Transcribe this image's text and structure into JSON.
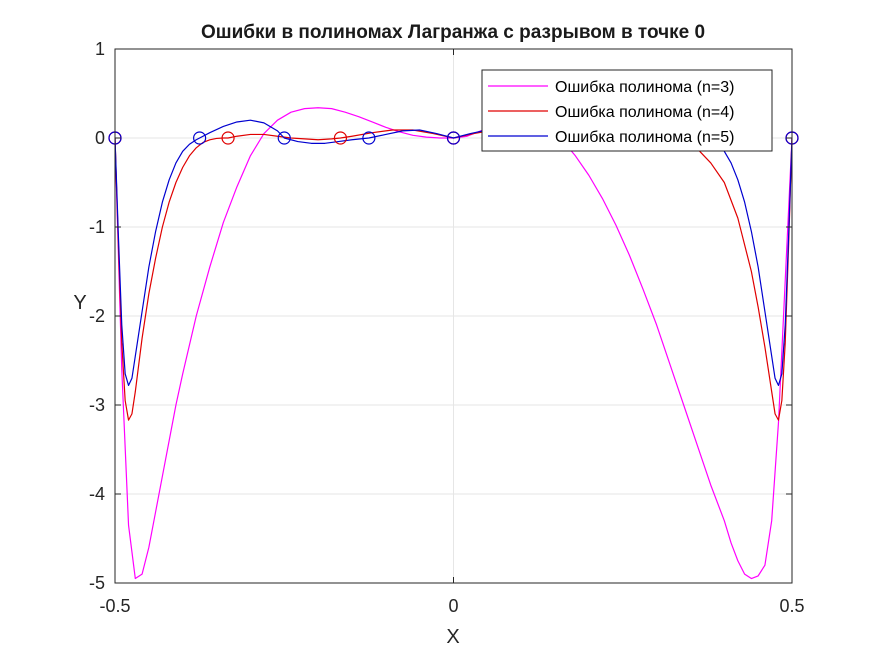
{
  "chart_data": {
    "type": "line",
    "title": "Ошибки в полиномах Лагранжа с разрывом в точке 0",
    "xlabel": "X",
    "ylabel": "Y",
    "xlim": [
      -0.5,
      0.5
    ],
    "ylim": [
      -5,
      1
    ],
    "xticks": [
      -0.5,
      0,
      0.5
    ],
    "xtick_labels": [
      "-0.5",
      "0",
      "0.5"
    ],
    "yticks": [
      1,
      0,
      -1,
      -2,
      -3,
      -4,
      -5
    ],
    "ytick_labels": [
      "1",
      "0",
      "-1",
      "-2",
      "-3",
      "-4",
      "-5"
    ],
    "grid": true,
    "legend_position": "top-right",
    "series": [
      {
        "name": "Ошибка полинома (n=3)",
        "color": "#ff00ff",
        "x": [
          -0.5,
          -0.49,
          -0.48,
          -0.47,
          -0.46,
          -0.45,
          -0.44,
          -0.43,
          -0.42,
          -0.41,
          -0.4,
          -0.38,
          -0.36,
          -0.34,
          -0.32,
          -0.3,
          -0.28,
          -0.26,
          -0.24,
          -0.22,
          -0.2,
          -0.18,
          -0.16,
          -0.14,
          -0.12,
          -0.1,
          -0.08,
          -0.06,
          -0.04,
          -0.02,
          0,
          0.02,
          0.04,
          0.06,
          0.08,
          0.1,
          0.12,
          0.14,
          0.16,
          0.18,
          0.2,
          0.22,
          0.24,
          0.26,
          0.28,
          0.3,
          0.32,
          0.34,
          0.36,
          0.38,
          0.4,
          0.41,
          0.42,
          0.43,
          0.44,
          0.45,
          0.46,
          0.47,
          0.48,
          0.49,
          0.5
        ],
        "y": [
          0,
          -2.6,
          -4.35,
          -4.95,
          -4.9,
          -4.6,
          -4.2,
          -3.8,
          -3.4,
          -3.0,
          -2.65,
          -2.0,
          -1.45,
          -0.95,
          -0.55,
          -0.2,
          0.05,
          0.2,
          0.29,
          0.33,
          0.34,
          0.33,
          0.29,
          0.24,
          0.18,
          0.12,
          0.07,
          0.03,
          0.01,
          0.0,
          0,
          0.02,
          0.08,
          0.14,
          0.2,
          0.24,
          0.22,
          0.12,
          -0.02,
          -0.2,
          -0.42,
          -0.68,
          -0.98,
          -1.32,
          -1.7,
          -2.1,
          -2.55,
          -3.0,
          -3.45,
          -3.9,
          -4.3,
          -4.55,
          -4.75,
          -4.9,
          -4.95,
          -4.92,
          -4.8,
          -4.3,
          -3.2,
          -1.6,
          0
        ]
      },
      {
        "name": "Ошибка полинома (n=4)",
        "color": "#e00000",
        "x": [
          -0.5,
          -0.495,
          -0.49,
          -0.485,
          -0.48,
          -0.475,
          -0.47,
          -0.465,
          -0.46,
          -0.45,
          -0.44,
          -0.43,
          -0.42,
          -0.41,
          -0.4,
          -0.39,
          -0.38,
          -0.37,
          -0.36,
          -0.35,
          -0.34,
          -0.333,
          -0.32,
          -0.3,
          -0.28,
          -0.26,
          -0.24,
          -0.22,
          -0.2,
          -0.18,
          -0.167,
          -0.15,
          -0.12,
          -0.09,
          -0.06,
          -0.03,
          0,
          0.03,
          0.06,
          0.1,
          0.15,
          0.2,
          0.25,
          0.3,
          0.33,
          0.36,
          0.38,
          0.4,
          0.42,
          0.44,
          0.45,
          0.46,
          0.465,
          0.47,
          0.475,
          0.48,
          0.485,
          0.49,
          0.495,
          0.5
        ],
        "y": [
          0,
          -1.2,
          -2.3,
          -2.95,
          -3.17,
          -3.1,
          -2.85,
          -2.55,
          -2.25,
          -1.75,
          -1.35,
          -1.0,
          -0.72,
          -0.5,
          -0.33,
          -0.2,
          -0.11,
          -0.05,
          -0.02,
          -0.005,
          0.0,
          0,
          0.02,
          0.04,
          0.04,
          0.02,
          0.0,
          -0.01,
          -0.02,
          -0.01,
          0,
          0.02,
          0.06,
          0.09,
          0.09,
          0.05,
          0,
          0.05,
          0.09,
          0.08,
          0.02,
          0.0,
          0.02,
          0.04,
          0.0,
          -0.12,
          -0.28,
          -0.5,
          -0.9,
          -1.5,
          -1.9,
          -2.35,
          -2.6,
          -2.85,
          -3.1,
          -3.17,
          -2.95,
          -2.3,
          -1.2,
          0
        ]
      },
      {
        "name": "Ошибка полинома (n=5)",
        "color": "#0000d0",
        "x": [
          -0.5,
          -0.495,
          -0.49,
          -0.485,
          -0.48,
          -0.475,
          -0.47,
          -0.46,
          -0.45,
          -0.44,
          -0.43,
          -0.42,
          -0.41,
          -0.4,
          -0.39,
          -0.38,
          -0.375,
          -0.36,
          -0.34,
          -0.32,
          -0.3,
          -0.28,
          -0.26,
          -0.25,
          -0.23,
          -0.21,
          -0.19,
          -0.17,
          -0.15,
          -0.125,
          -0.1,
          -0.075,
          -0.05,
          -0.025,
          0,
          0.025,
          0.05,
          0.075,
          0.1,
          0.15,
          0.2,
          0.25,
          0.3,
          0.35,
          0.375,
          0.39,
          0.4,
          0.41,
          0.42,
          0.43,
          0.44,
          0.45,
          0.46,
          0.47,
          0.475,
          0.48,
          0.485,
          0.49,
          0.495,
          0.5
        ],
        "y": [
          0,
          -1.1,
          -2.1,
          -2.65,
          -2.78,
          -2.7,
          -2.45,
          -1.95,
          -1.45,
          -1.05,
          -0.72,
          -0.47,
          -0.28,
          -0.15,
          -0.07,
          -0.02,
          0,
          0.06,
          0.13,
          0.18,
          0.2,
          0.17,
          0.08,
          0,
          -0.04,
          -0.06,
          -0.06,
          -0.04,
          -0.02,
          0,
          0.04,
          0.08,
          0.09,
          0.05,
          0,
          0.05,
          0.09,
          0.08,
          0.04,
          -0.02,
          0.0,
          0.06,
          0.1,
          0.06,
          0,
          -0.07,
          -0.15,
          -0.28,
          -0.47,
          -0.72,
          -1.05,
          -1.45,
          -1.95,
          -2.45,
          -2.7,
          -2.78,
          -2.65,
          -2.1,
          -1.1,
          0
        ]
      }
    ],
    "markers": [
      {
        "name": "n=3 nodes",
        "color": "#ff00ff",
        "x": [
          -0.5,
          0,
          0.5
        ],
        "y": [
          0,
          0,
          0
        ]
      },
      {
        "name": "n=4 nodes",
        "color": "#e00000",
        "x": [
          -0.5,
          -0.333,
          -0.167,
          0,
          0.167,
          0.333,
          0.5
        ],
        "y": [
          0,
          0,
          0,
          0,
          0,
          0,
          0
        ]
      },
      {
        "name": "n=5 nodes",
        "color": "#0000d0",
        "x": [
          -0.5,
          -0.375,
          -0.25,
          -0.125,
          0,
          0.125,
          0.25,
          0.375,
          0.5
        ],
        "y": [
          0,
          0,
          0,
          0,
          0,
          0,
          0,
          0,
          0
        ]
      }
    ]
  }
}
